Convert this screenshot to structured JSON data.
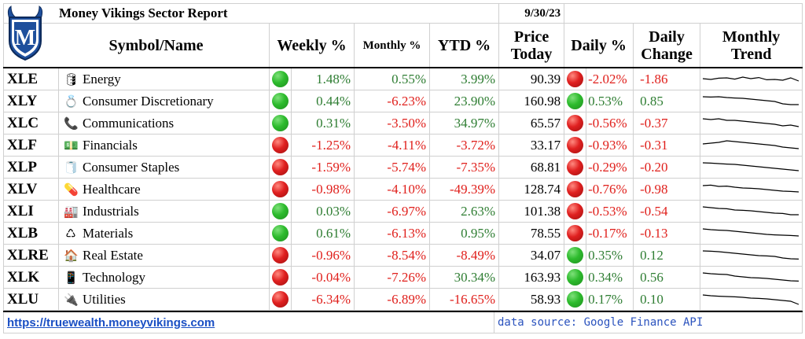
{
  "header": {
    "title": "Money Vikings Sector Report",
    "date": "9/30/23",
    "columns": {
      "symbol_name": "Symbol/Name",
      "weekly": "Weekly %",
      "monthly": "Monthly %",
      "ytd": "YTD %",
      "price_line1": "Price",
      "price_line2": "Today",
      "daily": "Daily %",
      "change_line1": "Daily",
      "change_line2": "Change",
      "trend_line1": "Monthly",
      "trend_line2": "Trend"
    }
  },
  "logo": {
    "letter": "M",
    "colors": {
      "primary": "#1e4f9c",
      "secondary": "#ffffff"
    }
  },
  "colors": {
    "positive": "#2e7d32",
    "negative": "#e0201c",
    "link": "#1a4fc4"
  },
  "rows": [
    {
      "symbol": "XLE",
      "icon": "oil-barrel-icon",
      "glyph": "🛢",
      "name": "Energy",
      "weekly": "1.48%",
      "weekly_dir": "up",
      "monthly": "0.55%",
      "ytd": "3.99%",
      "price": "90.39",
      "daily": "-2.02%",
      "daily_dir": "down",
      "change": "-1.86",
      "trend": [
        0.55,
        0.5,
        0.58,
        0.6,
        0.52,
        0.65,
        0.55,
        0.62,
        0.48,
        0.5,
        0.45,
        0.6,
        0.4
      ]
    },
    {
      "symbol": "XLY",
      "icon": "ring-icon",
      "glyph": "💍",
      "name": "Consumer Discretionary",
      "weekly": "0.44%",
      "weekly_dir": "up",
      "monthly": "-6.23%",
      "ytd": "23.90%",
      "price": "160.98",
      "daily": "0.53%",
      "daily_dir": "up",
      "change": "0.85",
      "trend": [
        0.8,
        0.78,
        0.8,
        0.75,
        0.72,
        0.7,
        0.65,
        0.6,
        0.55,
        0.5,
        0.35,
        0.3,
        0.3
      ]
    },
    {
      "symbol": "XLC",
      "icon": "phone-icon",
      "glyph": "📞",
      "name": "Communications",
      "weekly": "0.31%",
      "weekly_dir": "up",
      "monthly": "-3.50%",
      "ytd": "34.97%",
      "price": "65.57",
      "daily": "-0.56%",
      "daily_dir": "down",
      "change": "-0.37",
      "trend": [
        0.8,
        0.75,
        0.8,
        0.7,
        0.7,
        0.65,
        0.6,
        0.55,
        0.5,
        0.45,
        0.35,
        0.4,
        0.3
      ]
    },
    {
      "symbol": "XLF",
      "icon": "money-icon",
      "glyph": "💵",
      "name": "Financials",
      "weekly": "-1.25%",
      "weekly_dir": "down",
      "monthly": "-4.11%",
      "ytd": "-3.72%",
      "price": "33.17",
      "daily": "-0.93%",
      "daily_dir": "down",
      "change": "-0.31",
      "trend": [
        0.6,
        0.65,
        0.7,
        0.8,
        0.75,
        0.7,
        0.65,
        0.6,
        0.55,
        0.5,
        0.4,
        0.35,
        0.3
      ]
    },
    {
      "symbol": "XLP",
      "icon": "toilet-paper-icon",
      "glyph": "🧻",
      "name": "Consumer Staples",
      "weekly": "-1.59%",
      "weekly_dir": "down",
      "monthly": "-5.74%",
      "ytd": "-7.35%",
      "price": "68.81",
      "daily": "-0.29%",
      "daily_dir": "down",
      "change": "-0.20",
      "trend": [
        0.8,
        0.78,
        0.75,
        0.72,
        0.7,
        0.65,
        0.6,
        0.55,
        0.5,
        0.45,
        0.4,
        0.35,
        0.3
      ]
    },
    {
      "symbol": "XLV",
      "icon": "pill-icon",
      "glyph": "💊",
      "name": "Healthcare",
      "weekly": "-0.98%",
      "weekly_dir": "down",
      "monthly": "-4.10%",
      "ytd": "-49.39%",
      "price": "128.74",
      "daily": "-0.76%",
      "daily_dir": "down",
      "change": "-0.98",
      "trend": [
        0.75,
        0.78,
        0.7,
        0.72,
        0.65,
        0.6,
        0.58,
        0.55,
        0.5,
        0.45,
        0.4,
        0.38,
        0.35
      ]
    },
    {
      "symbol": "XLI",
      "icon": "factory-icon",
      "glyph": "🏭",
      "name": "Industrials",
      "weekly": "0.03%",
      "weekly_dir": "up",
      "monthly": "-6.97%",
      "ytd": "2.63%",
      "price": "101.38",
      "daily": "-0.53%",
      "daily_dir": "down",
      "change": "-0.54",
      "trend": [
        0.8,
        0.75,
        0.7,
        0.68,
        0.6,
        0.58,
        0.55,
        0.5,
        0.45,
        0.4,
        0.38,
        0.3,
        0.3
      ]
    },
    {
      "symbol": "XLB",
      "icon": "recycle-icon",
      "glyph": "♺",
      "name": "Materials",
      "weekly": "0.61%",
      "weekly_dir": "up",
      "monthly": "-6.13%",
      "ytd": "0.95%",
      "price": "78.55",
      "daily": "-0.17%",
      "daily_dir": "down",
      "change": "-0.13",
      "trend": [
        0.8,
        0.75,
        0.72,
        0.7,
        0.65,
        0.6,
        0.55,
        0.5,
        0.45,
        0.42,
        0.4,
        0.38,
        0.35
      ]
    },
    {
      "symbol": "XLRE",
      "icon": "house-icon",
      "glyph": "🏠",
      "name": "Real Estate",
      "weekly": "-0.96%",
      "weekly_dir": "down",
      "monthly": "-8.54%",
      "ytd": "-8.49%",
      "price": "34.07",
      "daily": "0.35%",
      "daily_dir": "up",
      "change": "0.12",
      "trend": [
        0.8,
        0.78,
        0.75,
        0.7,
        0.65,
        0.6,
        0.55,
        0.5,
        0.48,
        0.45,
        0.35,
        0.3,
        0.28
      ]
    },
    {
      "symbol": "XLK",
      "icon": "mobile-phone-icon",
      "glyph": "📱",
      "name": "Technology",
      "weekly": "-0.04%",
      "weekly_dir": "down",
      "monthly": "-7.26%",
      "ytd": "30.34%",
      "price": "163.93",
      "daily": "0.34%",
      "daily_dir": "up",
      "change": "0.56",
      "trend": [
        0.8,
        0.75,
        0.72,
        0.7,
        0.6,
        0.55,
        0.5,
        0.48,
        0.45,
        0.4,
        0.35,
        0.3,
        0.28
      ]
    },
    {
      "symbol": "XLU",
      "icon": "plug-icon",
      "glyph": "🔌",
      "name": "Utilities",
      "weekly": "-6.34%",
      "weekly_dir": "down",
      "monthly": "-6.89%",
      "ytd": "-16.65%",
      "price": "58.93",
      "daily": "0.17%",
      "daily_dir": "up",
      "change": "0.10",
      "trend": [
        0.8,
        0.75,
        0.72,
        0.7,
        0.68,
        0.65,
        0.6,
        0.58,
        0.55,
        0.5,
        0.45,
        0.4,
        0.2
      ]
    }
  ],
  "footer": {
    "link_text": "https://truewealth.moneyvikings.com",
    "source_text": "data source: Google Finance API"
  }
}
